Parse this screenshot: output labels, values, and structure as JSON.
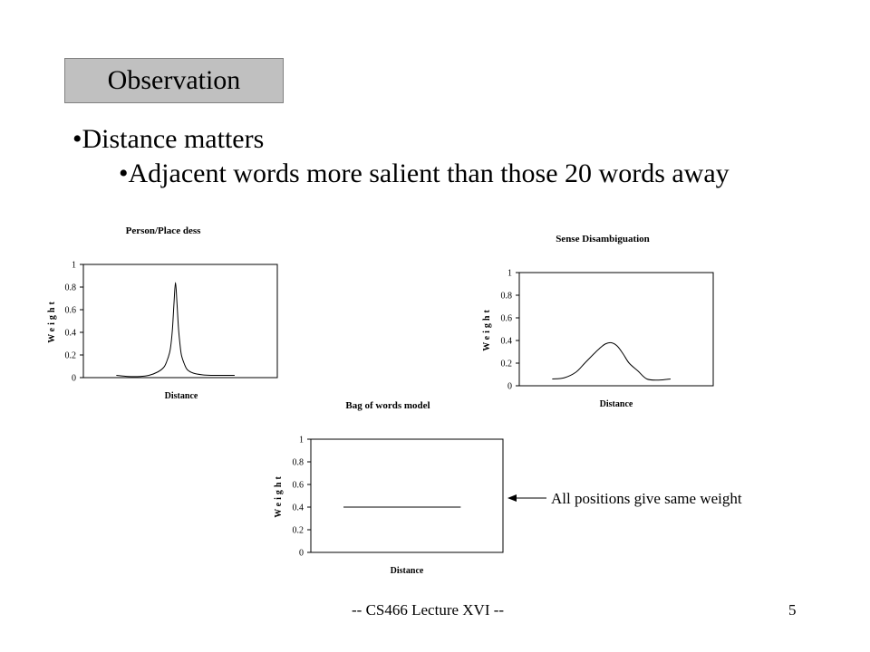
{
  "slide": {
    "title": "Observation",
    "bullets": [
      "•Distance matters",
      "•Adjacent words more salient than those 20 words away"
    ],
    "annotation": "All positions give same weight",
    "footer": "-- CS466 Lecture XVI --",
    "page_number": "5"
  },
  "chart_data": [
    {
      "type": "line",
      "title": "Person/Place dess",
      "xlabel": "Distance",
      "ylabel": "Weight",
      "ylim": [
        0,
        1
      ],
      "yticks": [
        "0",
        "0.2",
        "0.4",
        "0.6",
        "0.8",
        "1"
      ],
      "x": [
        -20,
        -16,
        -12,
        -9,
        -6,
        -4,
        -3,
        -2,
        -1.5,
        -1,
        -0.5,
        0,
        0.5,
        1,
        1.5,
        2,
        3,
        4,
        6,
        9,
        12,
        16,
        20
      ],
      "series": [
        {
          "values": [
            0.02,
            0.01,
            0.01,
            0.02,
            0.05,
            0.09,
            0.14,
            0.22,
            0.3,
            0.44,
            0.66,
            0.84,
            0.66,
            0.44,
            0.3,
            0.2,
            0.12,
            0.07,
            0.04,
            0.025,
            0.02,
            0.02,
            0.02
          ]
        }
      ]
    },
    {
      "type": "line",
      "title": "Sense Disambiguation",
      "xlabel": "Distance",
      "ylabel": "Weight",
      "ylim": [
        0,
        1
      ],
      "yticks": [
        "0",
        "0.2",
        "0.4",
        "0.6",
        "0.8",
        "1"
      ],
      "x": [
        -20,
        -16,
        -12,
        -9,
        -6,
        -4,
        -2,
        0,
        2,
        4,
        6,
        9,
        12,
        16,
        20
      ],
      "series": [
        {
          "values": [
            0.06,
            0.07,
            0.12,
            0.2,
            0.28,
            0.33,
            0.37,
            0.38,
            0.35,
            0.28,
            0.2,
            0.13,
            0.06,
            0.05,
            0.06
          ]
        }
      ]
    },
    {
      "type": "line",
      "title": "Bag of words model",
      "xlabel": "Distance",
      "ylabel": "Weight",
      "ylim": [
        0,
        1
      ],
      "yticks": [
        "0",
        "0.2",
        "0.4",
        "0.6",
        "0.8",
        "1"
      ],
      "x": [
        -20,
        20
      ],
      "series": [
        {
          "values": [
            0.4,
            0.4
          ]
        }
      ]
    }
  ]
}
